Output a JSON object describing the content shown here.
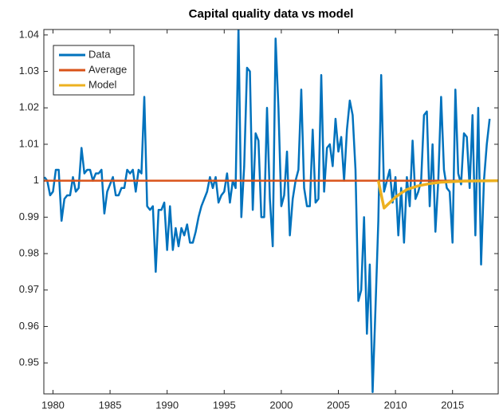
{
  "chart_data": {
    "type": "line",
    "title": "Capital quality data vs model",
    "xlim": [
      1979.2,
      2019
    ],
    "ylim": [
      0.9415,
      1.0415
    ],
    "xticks": [
      1980,
      1985,
      1990,
      1995,
      2000,
      2005,
      2010,
      2015
    ],
    "yticks": [
      0.95,
      0.96,
      0.97,
      0.98,
      0.99,
      1,
      1.01,
      1.02,
      1.03,
      1.04
    ],
    "legend": "upper left",
    "series": [
      {
        "name": "Data",
        "color": "#0072BD",
        "x": [
          1979.25,
          1979.5,
          1979.75,
          1980,
          1980.25,
          1980.5,
          1980.75,
          1981,
          1981.25,
          1981.5,
          1981.75,
          1982,
          1982.25,
          1982.5,
          1982.75,
          1983,
          1983.25,
          1983.5,
          1983.75,
          1984,
          1984.25,
          1984.5,
          1984.75,
          1985,
          1985.25,
          1985.5,
          1985.75,
          1986,
          1986.25,
          1986.5,
          1986.75,
          1987,
          1987.25,
          1987.5,
          1987.75,
          1988,
          1988.25,
          1988.5,
          1988.75,
          1989,
          1989.25,
          1989.5,
          1989.75,
          1990,
          1990.25,
          1990.5,
          1990.75,
          1991,
          1991.25,
          1991.5,
          1991.75,
          1992,
          1992.25,
          1992.5,
          1992.75,
          1993,
          1993.25,
          1993.5,
          1993.75,
          1994,
          1994.25,
          1994.5,
          1994.75,
          1995,
          1995.25,
          1995.5,
          1995.75,
          1996,
          1996.25,
          1996.5,
          1996.75,
          1997,
          1997.25,
          1997.5,
          1997.75,
          1998,
          1998.25,
          1998.5,
          1998.75,
          1999,
          1999.25,
          1999.5,
          1999.75,
          2000,
          2000.25,
          2000.5,
          2000.75,
          2001,
          2001.25,
          2001.5,
          2001.75,
          2002,
          2002.25,
          2002.5,
          2002.75,
          2003,
          2003.25,
          2003.5,
          2003.75,
          2004,
          2004.25,
          2004.5,
          2004.75,
          2005,
          2005.25,
          2005.5,
          2005.75,
          2006,
          2006.25,
          2006.5,
          2006.75,
          2007,
          2007.25,
          2007.5,
          2007.75,
          2008,
          2008.25,
          2008.5,
          2008.75,
          2009,
          2009.25,
          2009.5,
          2009.75,
          2010,
          2010.25,
          2010.5,
          2010.75,
          2011,
          2011.25,
          2011.5,
          2011.75,
          2012,
          2012.25,
          2012.5,
          2012.75,
          2013,
          2013.25,
          2013.5,
          2013.75,
          2014,
          2014.25,
          2014.5,
          2014.75,
          2015,
          2015.25,
          2015.5,
          2015.75,
          2016,
          2016.25,
          2016.5,
          2016.75,
          2017,
          2017.25,
          2017.5,
          2017.75,
          2018,
          2018.25
        ],
        "values": [
          1.001,
          1.0,
          0.996,
          0.997,
          1.003,
          1.003,
          0.989,
          0.995,
          0.996,
          0.996,
          1.001,
          0.997,
          0.998,
          1.009,
          1.002,
          1.003,
          1.003,
          1.0,
          1.002,
          1.002,
          1.003,
          0.991,
          0.997,
          0.999,
          1.001,
          0.996,
          0.996,
          0.998,
          0.998,
          1.003,
          1.002,
          1.003,
          0.997,
          1.003,
          1.002,
          1.023,
          0.993,
          0.992,
          0.993,
          0.975,
          0.992,
          0.992,
          0.994,
          0.981,
          0.993,
          0.981,
          0.987,
          0.982,
          0.987,
          0.985,
          0.988,
          0.983,
          0.983,
          0.986,
          0.99,
          0.993,
          0.995,
          0.997,
          1.001,
          0.998,
          1.001,
          0.994,
          0.996,
          0.997,
          1.002,
          0.994,
          1.0,
          0.998,
          1.042,
          0.99,
          1.004,
          1.031,
          1.03,
          0.992,
          1.013,
          1.011,
          0.99,
          0.99,
          1.02,
          0.995,
          0.982,
          1.039,
          1.02,
          0.993,
          0.996,
          1.008,
          0.985,
          0.995,
          1.0,
          1.003,
          1.025,
          0.998,
          0.993,
          0.993,
          1.014,
          0.994,
          0.995,
          1.029,
          0.997,
          1.009,
          1.01,
          1.004,
          1.017,
          1.008,
          1.012,
          1.0,
          1.014,
          1.022,
          1.018,
          1.003,
          0.967,
          0.97,
          0.99,
          0.958,
          0.977,
          0.942,
          0.965,
          0.989,
          1.029,
          0.997,
          1.0,
          1.003,
          0.994,
          1.001,
          0.985,
          0.998,
          0.983,
          1.001,
          0.993,
          1.011,
          0.995,
          0.997,
          1.0,
          1.018,
          1.019,
          0.993,
          1.01,
          0.986,
          1.0,
          1.023,
          1.003,
          0.998,
          0.997,
          0.983,
          1.025,
          1.002,
          0.999,
          1.013,
          1.012,
          0.998,
          1.018,
          0.985,
          1.02,
          0.977,
          1.0,
          1.01,
          1.017
        ]
      },
      {
        "name": "Average",
        "color": "#D95319",
        "x": [
          1979.2,
          2019
        ],
        "values": [
          1,
          1
        ]
      },
      {
        "name": "Model",
        "color": "#EDB120",
        "x": [
          2008.5,
          2009,
          2009.5,
          2010,
          2010.5,
          2011,
          2012,
          2013,
          2014,
          2016,
          2019
        ],
        "values": [
          1,
          0.9925,
          0.994,
          0.9955,
          0.9966,
          0.9976,
          0.9986,
          0.9992,
          0.9996,
          0.9999,
          1
        ]
      }
    ]
  }
}
